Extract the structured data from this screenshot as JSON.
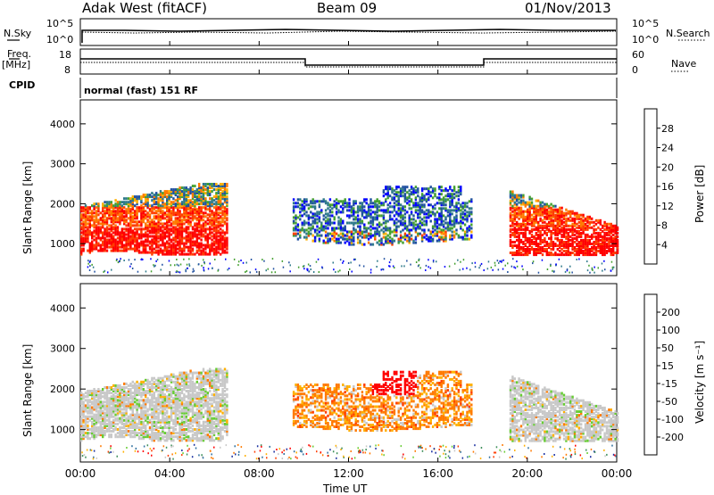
{
  "header": {
    "radar": "Adak West (fitACF)",
    "beam": "Beam 09",
    "date": "01/Nov/2013"
  },
  "params": {
    "nsky_label": "N.Sky",
    "nsearch_label": "N.Search",
    "noise_ticks": [
      "10^5",
      "10^0"
    ],
    "freq_label": "Freq.",
    "freq_unit": "[MHz]",
    "freq_ticks": [
      "18",
      "8"
    ],
    "nave_label": "Nave",
    "nave_ticks": [
      "60",
      "0"
    ],
    "cpid_label": "CPID",
    "cpid_value": "normal (fast) 151 RF"
  },
  "chart_data": [
    {
      "type": "heatmap",
      "name": "power",
      "ylabel": "Slant Range [km]",
      "yticks": [
        1000,
        2000,
        3000,
        4000
      ],
      "ylim": [
        200,
        4600
      ],
      "xlim": [
        0,
        24
      ],
      "colorbar": {
        "label": "Power [dB]",
        "ticks": [
          "28",
          "24",
          "20",
          "16",
          "12",
          "8",
          "4"
        ],
        "colors": [
          "#ff0000",
          "#ff3d00",
          "#ff7a00",
          "#ffb000",
          "#44a030",
          "#2f7a8a",
          "#2050a0",
          "#0000ff"
        ]
      }
    },
    {
      "type": "heatmap",
      "name": "velocity",
      "ylabel": "Slant Range [km]",
      "yticks": [
        1000,
        2000,
        3000,
        4000
      ],
      "ylim": [
        200,
        4600
      ],
      "xlim": [
        0,
        24
      ],
      "colorbar": {
        "label": "Velocity [m s⁻¹]",
        "ticks": [
          "200",
          "100",
          "50",
          "15",
          "-15",
          "-50",
          "-100",
          "-200"
        ],
        "colors": [
          "#1a2fa0",
          "#2e6f9e",
          "#3e8f5a",
          "#66cc33",
          "#c8c8c8",
          "#ffb000",
          "#ff7a00",
          "#ff3d00",
          "#ff0000"
        ]
      }
    }
  ],
  "xaxis": {
    "label": "Time UT",
    "ticks": [
      "00:00",
      "04:00",
      "08:00",
      "12:00",
      "16:00",
      "20:00",
      "00:00"
    ]
  }
}
